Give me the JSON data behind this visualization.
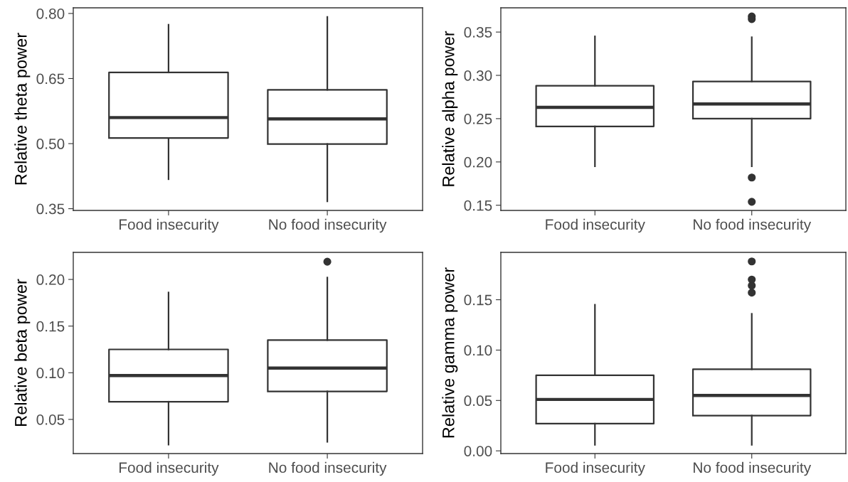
{
  "chart_data": [
    {
      "type": "box",
      "ylabel": "Relative theta power",
      "categories": [
        "Food insecurity",
        "No food insecurity"
      ],
      "ylim": [
        0.346,
        0.813
      ],
      "yticks": [
        {
          "value": 0.35,
          "label": "0.35"
        },
        {
          "value": 0.5,
          "label": "0.50"
        },
        {
          "value": 0.65,
          "label": "0.65"
        },
        {
          "value": 0.8,
          "label": "0.80"
        }
      ],
      "grid": false,
      "color": "#333333",
      "boxes": [
        {
          "low": 0.418,
          "q1": 0.513,
          "median": 0.56,
          "q3": 0.664,
          "high": 0.774
        },
        {
          "low": 0.367,
          "q1": 0.499,
          "median": 0.557,
          "q3": 0.624,
          "high": 0.792
        }
      ]
    },
    {
      "type": "box",
      "ylabel": "Relative alpha power",
      "categories": [
        "Food insecurity",
        "No food insecurity"
      ],
      "ylim": [
        0.144,
        0.378
      ],
      "yticks": [
        {
          "value": 0.15,
          "label": "0.15"
        },
        {
          "value": 0.2,
          "label": "0.20"
        },
        {
          "value": 0.25,
          "label": "0.25"
        },
        {
          "value": 0.3,
          "label": "0.30"
        },
        {
          "value": 0.35,
          "label": "0.35"
        }
      ],
      "grid": false,
      "color": "#333333",
      "boxes": [
        {
          "low": 0.195,
          "q1": 0.241,
          "median": 0.263,
          "q3": 0.288,
          "high": 0.345
        },
        {
          "low": 0.195,
          "q1": 0.25,
          "median": 0.267,
          "q3": 0.293,
          "high": 0.344,
          "outliers": [
            0.368,
            0.365,
            0.182,
            0.154
          ]
        }
      ]
    },
    {
      "type": "box",
      "ylabel": "Relative beta power",
      "categories": [
        "Food insecurity",
        "No food insecurity"
      ],
      "ylim": [
        0.0134,
        0.229
      ],
      "yticks": [
        0.05,
        {
          "value": 0.1,
          "label": "0.10"
        },
        0.15,
        {
          "value": 0.2,
          "label": "0.20"
        }
      ],
      "grid": false,
      "color": "#333333",
      "boxes": [
        {
          "low": 0.023,
          "q1": 0.069,
          "median": 0.097,
          "q3": 0.125,
          "high": 0.186
        },
        {
          "low": 0.026,
          "q1": 0.08,
          "median": 0.105,
          "q3": 0.135,
          "high": 0.202,
          "outliers": [
            0.219
          ]
        }
      ]
    },
    {
      "type": "box",
      "ylabel": "Relative gamma power",
      "categories": [
        "Food insecurity",
        "No food insecurity"
      ],
      "ylim": [
        -0.0027,
        0.197
      ],
      "yticks": [
        {
          "value": 0.0,
          "label": "0.00"
        },
        {
          "value": 0.05,
          "label": "0.05"
        },
        {
          "value": 0.1,
          "label": "0.10"
        },
        {
          "value": 0.15,
          "label": "0.15"
        }
      ],
      "grid": false,
      "color": "#333333",
      "boxes": [
        {
          "low": 0.006,
          "q1": 0.027,
          "median": 0.051,
          "q3": 0.075,
          "high": 0.145
        },
        {
          "low": 0.006,
          "q1": 0.035,
          "median": 0.055,
          "q3": 0.081,
          "high": 0.136,
          "outliers": [
            0.188,
            0.17,
            0.164,
            0.157
          ]
        }
      ]
    }
  ]
}
